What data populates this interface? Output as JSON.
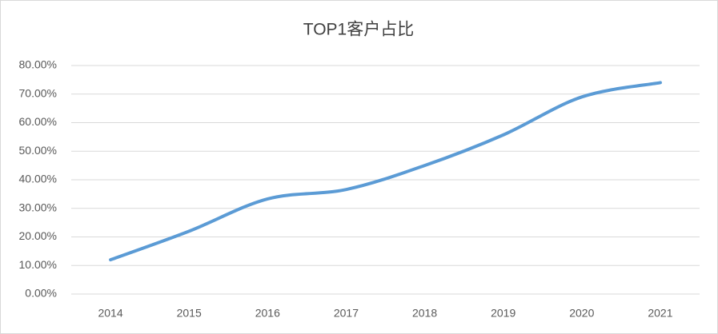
{
  "chart_data": {
    "type": "line",
    "title": "TOP1客户占比",
    "categories": [
      "2014",
      "2015",
      "2016",
      "2017",
      "2018",
      "2019",
      "2020",
      "2021"
    ],
    "series": [
      {
        "name": "TOP1客户占比",
        "color": "#5b9bd5",
        "values": [
          12,
          22,
          33.3,
          36.6,
          45,
          55.7,
          69,
          74
        ]
      }
    ],
    "ylim": [
      0,
      80
    ],
    "yticks": [
      {
        "value": 0,
        "label": "0.00%"
      },
      {
        "value": 10,
        "label": "10.00%"
      },
      {
        "value": 20,
        "label": "20.00%"
      },
      {
        "value": 30,
        "label": "30.00%"
      },
      {
        "value": 40,
        "label": "40.00%"
      },
      {
        "value": 50,
        "label": "50.00%"
      },
      {
        "value": 60,
        "label": "60.00%"
      },
      {
        "value": 70,
        "label": "70.00%"
      },
      {
        "value": 80,
        "label": "80.00%"
      }
    ],
    "grid": true,
    "smooth": true
  }
}
